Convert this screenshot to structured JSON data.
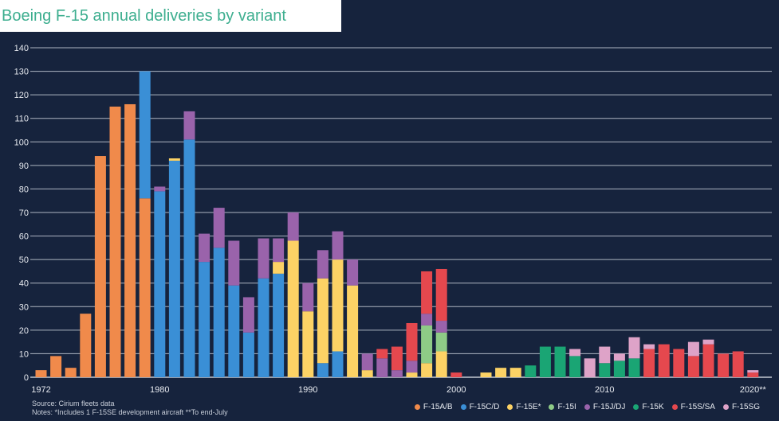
{
  "chart_data": {
    "type": "bar",
    "stacked": true,
    "title": "Boeing F-15 annual deliveries by variant",
    "ylim": [
      0,
      140
    ],
    "yticks": [
      0,
      10,
      20,
      30,
      40,
      50,
      60,
      70,
      80,
      90,
      100,
      110,
      120,
      130,
      140
    ],
    "xtick_labels": [
      {
        "year": 1972,
        "label": "1972"
      },
      {
        "year": 1980,
        "label": "1980"
      },
      {
        "year": 1990,
        "label": "1990"
      },
      {
        "year": 2000,
        "label": "2000"
      },
      {
        "year": 2010,
        "label": "2010"
      },
      {
        "year": 2020,
        "label": "2020**"
      }
    ],
    "grid": true,
    "legend_position": "bottom-right",
    "x": [
      1972,
      1973,
      1974,
      1975,
      1976,
      1977,
      1978,
      1979,
      1980,
      1981,
      1982,
      1983,
      1984,
      1985,
      1986,
      1987,
      1988,
      1989,
      1990,
      1991,
      1992,
      1993,
      1994,
      1995,
      1996,
      1997,
      1998,
      1999,
      2000,
      2001,
      2002,
      2003,
      2004,
      2005,
      2006,
      2007,
      2008,
      2009,
      2010,
      2011,
      2012,
      2013,
      2014,
      2015,
      2016,
      2017,
      2018,
      2019,
      2020
    ],
    "series": [
      {
        "name": "F-15A/B",
        "color": "#f08a4b",
        "values": [
          3,
          9,
          4,
          27,
          94,
          115,
          116,
          76,
          0,
          0,
          0,
          0,
          0,
          0,
          0,
          0,
          0,
          0,
          0,
          0,
          0,
          0,
          0,
          0,
          0,
          0,
          0,
          0,
          0,
          0,
          0,
          0,
          0,
          0,
          0,
          0,
          0,
          0,
          0,
          0,
          0,
          0,
          0,
          0,
          0,
          0,
          0,
          0,
          0
        ]
      },
      {
        "name": "F-15C/D",
        "color": "#3a8fd6",
        "values": [
          0,
          0,
          0,
          0,
          0,
          0,
          0,
          54,
          79,
          92,
          101,
          49,
          55,
          39,
          19,
          42,
          44,
          0,
          0,
          6,
          11,
          0,
          0,
          0,
          0,
          0,
          0,
          0,
          0,
          0,
          0,
          0,
          0,
          0,
          0,
          0,
          0,
          0,
          0,
          0,
          0,
          0,
          0,
          0,
          0,
          0,
          0,
          0,
          0
        ]
      },
      {
        "name": "F-15E*",
        "color": "#fcd265",
        "values": [
          0,
          0,
          0,
          0,
          0,
          0,
          0,
          0,
          0,
          1,
          0,
          0,
          0,
          0,
          0,
          0,
          5,
          58,
          28,
          36,
          39,
          39,
          3,
          0,
          0,
          2,
          6,
          11,
          0,
          0,
          2,
          4,
          4,
          0,
          0,
          0,
          0,
          0,
          0,
          0,
          0,
          0,
          0,
          0,
          0,
          0,
          0,
          0,
          0
        ]
      },
      {
        "name": "F-15I",
        "color": "#8ecb86",
        "values": [
          0,
          0,
          0,
          0,
          0,
          0,
          0,
          0,
          0,
          0,
          0,
          0,
          0,
          0,
          0,
          0,
          0,
          0,
          0,
          0,
          0,
          0,
          0,
          0,
          0,
          0,
          16,
          8,
          0,
          0,
          0,
          0,
          0,
          0,
          0,
          0,
          0,
          0,
          0,
          0,
          0,
          0,
          0,
          0,
          0,
          0,
          0,
          0,
          0
        ]
      },
      {
        "name": "F-15J/DJ",
        "color": "#9a63ab",
        "values": [
          0,
          0,
          0,
          0,
          0,
          0,
          0,
          0,
          2,
          0,
          12,
          12,
          17,
          19,
          15,
          17,
          10,
          12,
          12,
          12,
          12,
          11,
          7,
          8,
          3,
          5,
          5,
          5,
          0,
          0,
          0,
          0,
          0,
          0,
          0,
          0,
          0,
          0,
          0,
          0,
          0,
          0,
          0,
          0,
          0,
          0,
          0,
          0,
          0
        ]
      },
      {
        "name": "F-15K",
        "color": "#1aa574",
        "values": [
          0,
          0,
          0,
          0,
          0,
          0,
          0,
          0,
          0,
          0,
          0,
          0,
          0,
          0,
          0,
          0,
          0,
          0,
          0,
          0,
          0,
          0,
          0,
          0,
          0,
          0,
          0,
          0,
          0,
          0,
          0,
          0,
          0,
          5,
          13,
          13,
          9,
          0,
          6,
          7,
          8,
          0,
          0,
          0,
          0,
          0,
          0,
          0,
          0
        ]
      },
      {
        "name": "F-15S/SA",
        "color": "#e5484e",
        "values": [
          0,
          0,
          0,
          0,
          0,
          0,
          0,
          0,
          0,
          0,
          0,
          0,
          0,
          0,
          0,
          0,
          0,
          0,
          0,
          0,
          0,
          0,
          0,
          4,
          10,
          16,
          18,
          22,
          2,
          0,
          0,
          0,
          0,
          0,
          0,
          0,
          0,
          0,
          0,
          0,
          0,
          12,
          14,
          12,
          9,
          14,
          10,
          11,
          2
        ]
      },
      {
        "name": "F-15SG",
        "color": "#dea3c8",
        "values": [
          0,
          0,
          0,
          0,
          0,
          0,
          0,
          0,
          0,
          0,
          0,
          0,
          0,
          0,
          0,
          0,
          0,
          0,
          0,
          0,
          0,
          0,
          0,
          0,
          0,
          0,
          0,
          0,
          0,
          0,
          0,
          0,
          0,
          0,
          0,
          0,
          3,
          8,
          7,
          3,
          9,
          2,
          0,
          0,
          6,
          2,
          0,
          0,
          1
        ]
      }
    ]
  },
  "notes": {
    "source": "Source: Cirium fleets data",
    "footnote": "Notes: *Includes 1 F-15SE development aircraft **To end-July"
  }
}
